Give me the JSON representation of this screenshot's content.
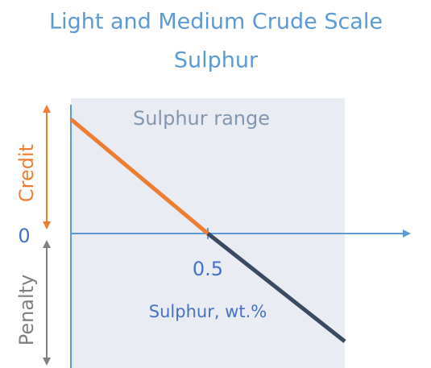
{
  "title": [
    "Light and Medium Crude Scale",
    "Sulphur"
  ],
  "region_label": "Sulphur range",
  "y_axis": {
    "upper_label": "Credit",
    "lower_label": "Penalty",
    "origin_label": "0"
  },
  "x_axis": {
    "tick_label": "0.5",
    "label": "Sulphur, wt.%"
  }
}
